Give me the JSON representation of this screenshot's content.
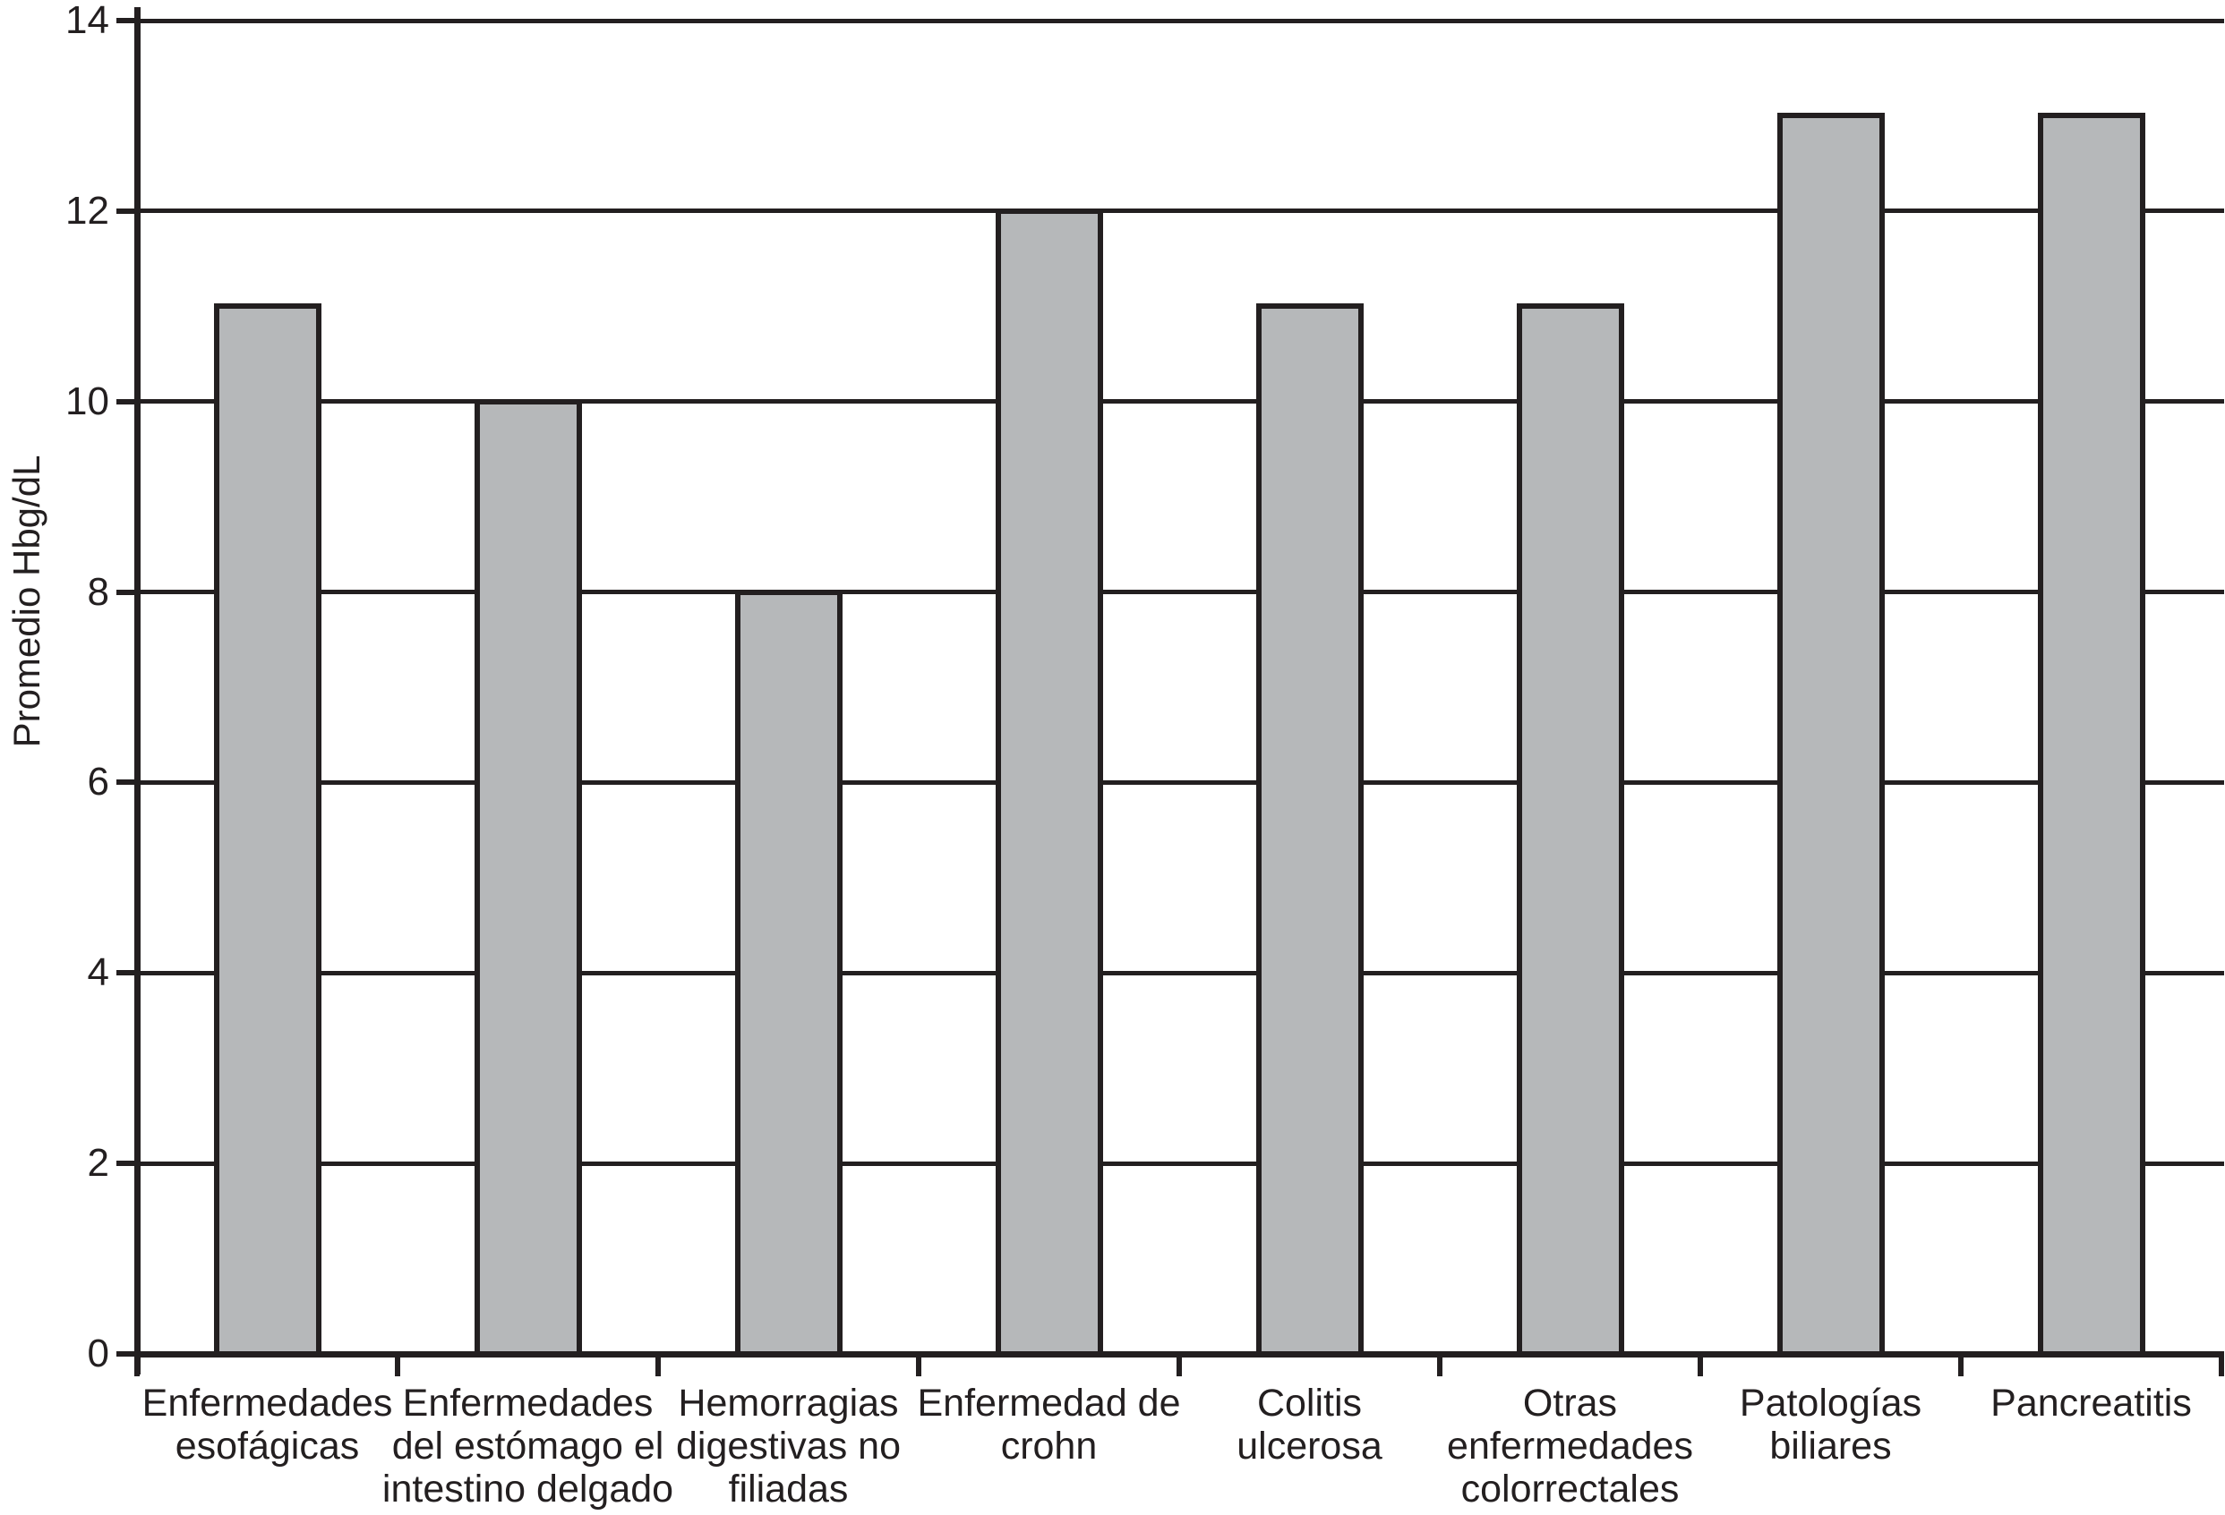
{
  "chart_data": {
    "type": "bar",
    "title": "",
    "xlabel": "",
    "ylabel": "Promedio Hbg/dL",
    "categories": [
      "Enfermedades\nesofágicas",
      "Enfermedades\ndel estómago el\nintestino delgado",
      "Hemorragias\ndigestivas no\nfiliadas",
      "Enfermedad de\ncrohn",
      "Colitis\nulcerosa",
      "Otras\nenfermedades\ncolorrectales",
      "Patologías\nbiliares",
      "Pancreatitis"
    ],
    "values": [
      11,
      10,
      8,
      12,
      11,
      11,
      13,
      13
    ],
    "ylim": [
      0,
      14
    ],
    "yticks": [
      0,
      2,
      4,
      6,
      8,
      10,
      12,
      14
    ],
    "grid": "horizontal",
    "legend": "none",
    "colors": {
      "bar_fill": "#b6b8ba",
      "line": "#231f20",
      "background": "#ffffff"
    }
  }
}
